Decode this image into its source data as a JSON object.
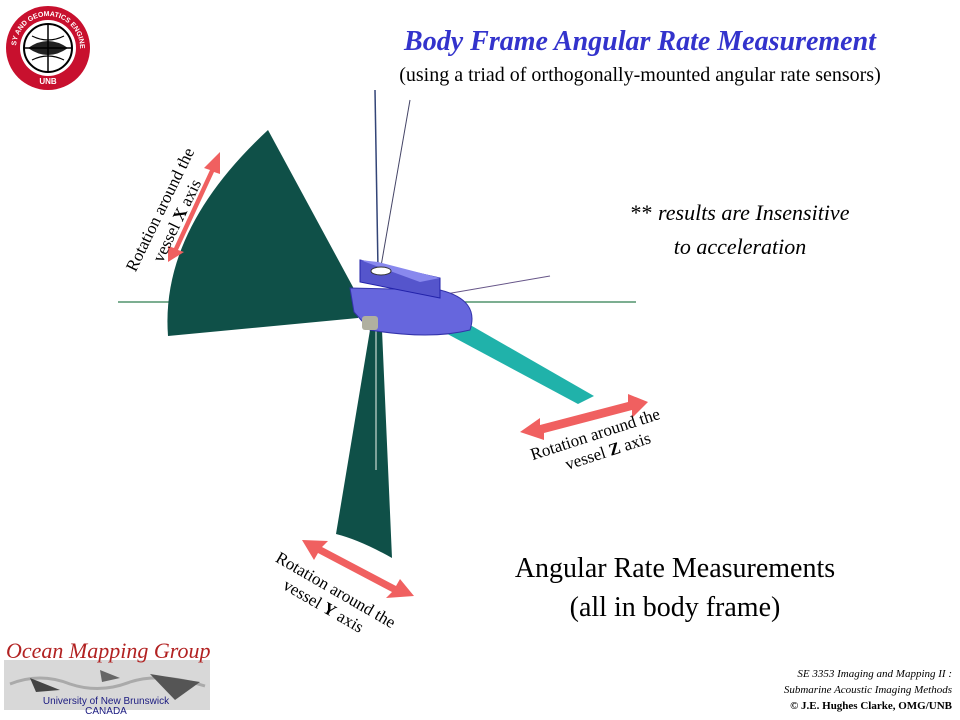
{
  "title": "Body Frame Angular Rate Measurement",
  "subtitle": "(using a triad of orthogonally-mounted angular rate sensors)",
  "note": {
    "line1_prefix": "** ",
    "line1_italic": "results are Insensitive",
    "line2": "to acceleration"
  },
  "rotation_x": {
    "line1": "Rotation around the",
    "line2_prefix": "vessel ",
    "axis": "X",
    "line2_suffix": " axis"
  },
  "rotation_z": {
    "line1": "Rotation around the",
    "line2_prefix": "vessel ",
    "axis": "Z",
    "line2_suffix": " axis"
  },
  "rotation_y": {
    "line1": "Rotation around the",
    "line2_prefix": "vessel ",
    "axis": "Y",
    "line2_suffix": " axis"
  },
  "main_caption": {
    "line1": "Angular Rate Measurements",
    "line2": "(all in body frame)"
  },
  "credit": {
    "line1": "SE 3353 Imaging and Mapping II :",
    "line2": "Submarine Acoustic Imaging Methods",
    "line3": "© J.E. Hughes Clarke, OMG/UNB"
  },
  "omg_logo": {
    "name": "Ocean Mapping Group",
    "university": "University of New Brunswick",
    "country": "CANADA"
  },
  "seal": {
    "text": "GEODESY AND GEOMATICS ENGINEERING",
    "bottom": "UNB"
  },
  "colors": {
    "title": "#3333cc",
    "fan_dark": "#0f5048",
    "fan_cyan": "#20b2aa",
    "arrow": "#f06060",
    "vessel": "#6666dd"
  }
}
